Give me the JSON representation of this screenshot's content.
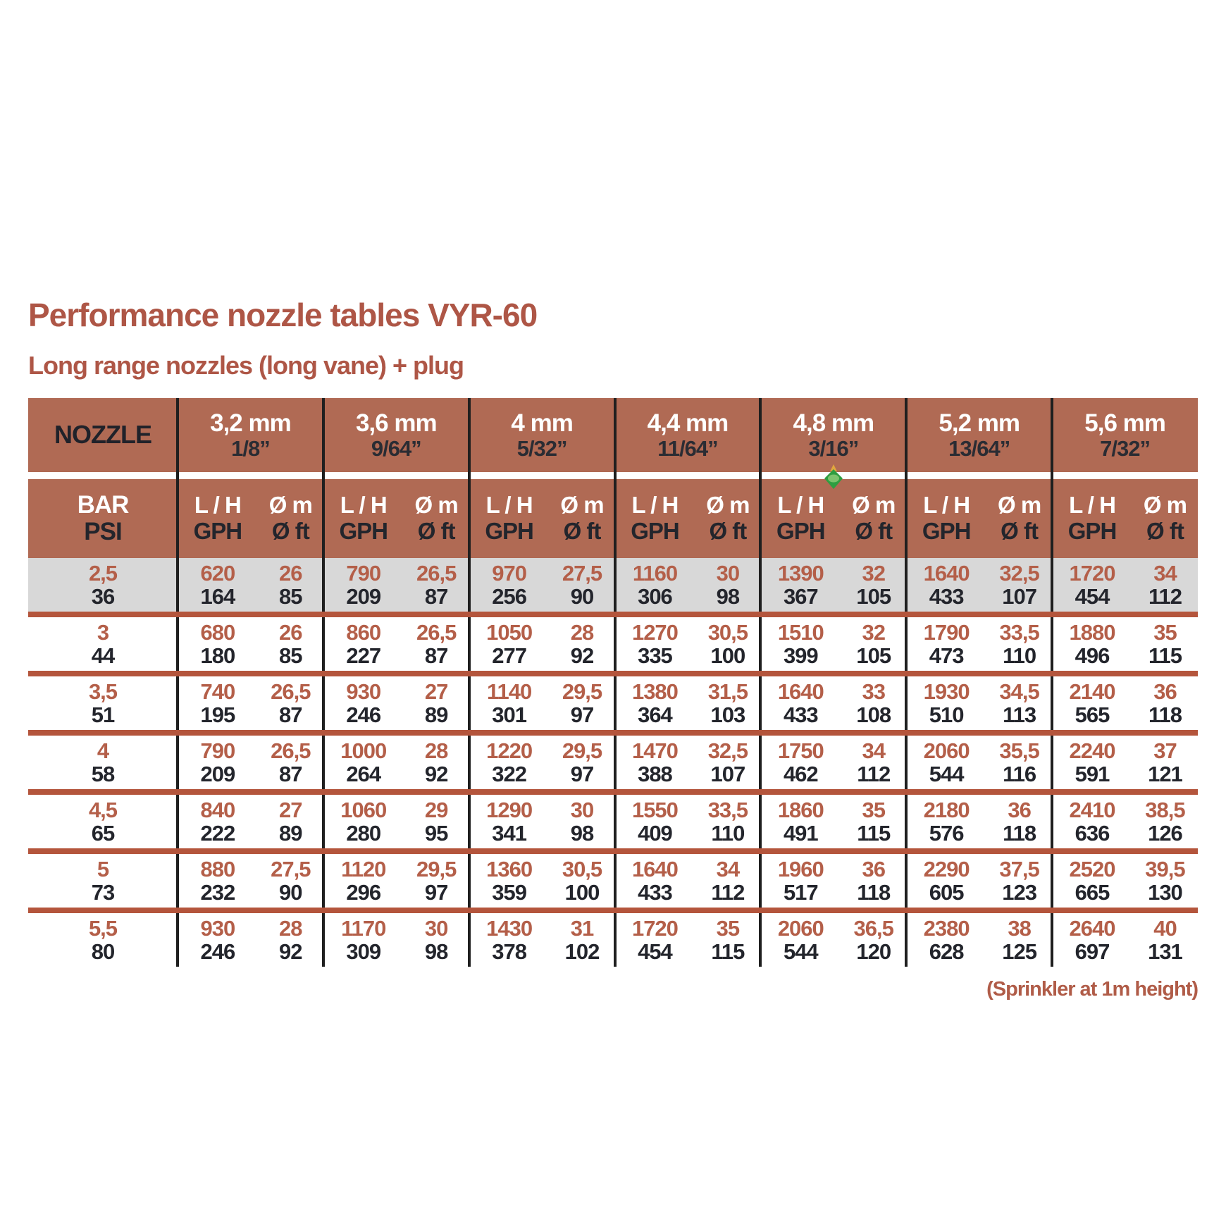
{
  "page": {
    "title": "Performance nozzle tables VYR-60",
    "subtitle": "Long range nozzles (long vane) + plug",
    "footnote": "(Sprinkler at 1m height)"
  },
  "colors": {
    "header_bg": "#b06a54",
    "rule_red": "#b4553c",
    "accent_text": "#b45f49",
    "dark_text": "#23252c",
    "highlight_row_bg": "#d8d8d8",
    "divider_black": "#1f1f1f",
    "marker_green": "#2f9e41",
    "marker_yellow": "#e0a63e"
  },
  "table": {
    "corner_label": "NOZZLE",
    "pressure": {
      "top": "BAR",
      "bottom": "PSI"
    },
    "units": {
      "flow_top": "L / H",
      "flow_bottom": "GPH",
      "dia_top": "Ø m",
      "dia_bottom": "Ø ft"
    },
    "nozzles": [
      {
        "mm": "3,2 mm",
        "inch": "1/8”"
      },
      {
        "mm": "3,6 mm",
        "inch": "9/64”"
      },
      {
        "mm": "4 mm",
        "inch": "5/32”"
      },
      {
        "mm": "4,4 mm",
        "inch": "11/64”"
      },
      {
        "mm": "4,8 mm",
        "inch": "3/16”"
      },
      {
        "mm": "5,2 mm",
        "inch": "13/64”"
      },
      {
        "mm": "5,6 mm",
        "inch": "7/32”"
      }
    ],
    "marker_column_index": 4,
    "rows": [
      {
        "bar": "2,5",
        "psi": "36",
        "highlight": true,
        "cells": [
          {
            "lh": "620",
            "gph": "164",
            "dm": "26",
            "dft": "85"
          },
          {
            "lh": "790",
            "gph": "209",
            "dm": "26,5",
            "dft": "87"
          },
          {
            "lh": "970",
            "gph": "256",
            "dm": "27,5",
            "dft": "90"
          },
          {
            "lh": "1160",
            "gph": "306",
            "dm": "30",
            "dft": "98"
          },
          {
            "lh": "1390",
            "gph": "367",
            "dm": "32",
            "dft": "105"
          },
          {
            "lh": "1640",
            "gph": "433",
            "dm": "32,5",
            "dft": "107"
          },
          {
            "lh": "1720",
            "gph": "454",
            "dm": "34",
            "dft": "112"
          }
        ]
      },
      {
        "bar": "3",
        "psi": "44",
        "highlight": false,
        "cells": [
          {
            "lh": "680",
            "gph": "180",
            "dm": "26",
            "dft": "85"
          },
          {
            "lh": "860",
            "gph": "227",
            "dm": "26,5",
            "dft": "87"
          },
          {
            "lh": "1050",
            "gph": "277",
            "dm": "28",
            "dft": "92"
          },
          {
            "lh": "1270",
            "gph": "335",
            "dm": "30,5",
            "dft": "100"
          },
          {
            "lh": "1510",
            "gph": "399",
            "dm": "32",
            "dft": "105"
          },
          {
            "lh": "1790",
            "gph": "473",
            "dm": "33,5",
            "dft": "110"
          },
          {
            "lh": "1880",
            "gph": "496",
            "dm": "35",
            "dft": "115"
          }
        ]
      },
      {
        "bar": "3,5",
        "psi": "51",
        "highlight": false,
        "cells": [
          {
            "lh": "740",
            "gph": "195",
            "dm": "26,5",
            "dft": "87"
          },
          {
            "lh": "930",
            "gph": "246",
            "dm": "27",
            "dft": "89"
          },
          {
            "lh": "1140",
            "gph": "301",
            "dm": "29,5",
            "dft": "97"
          },
          {
            "lh": "1380",
            "gph": "364",
            "dm": "31,5",
            "dft": "103"
          },
          {
            "lh": "1640",
            "gph": "433",
            "dm": "33",
            "dft": "108"
          },
          {
            "lh": "1930",
            "gph": "510",
            "dm": "34,5",
            "dft": "113"
          },
          {
            "lh": "2140",
            "gph": "565",
            "dm": "36",
            "dft": "118"
          }
        ]
      },
      {
        "bar": "4",
        "psi": "58",
        "highlight": false,
        "cells": [
          {
            "lh": "790",
            "gph": "209",
            "dm": "26,5",
            "dft": "87"
          },
          {
            "lh": "1000",
            "gph": "264",
            "dm": "28",
            "dft": "92"
          },
          {
            "lh": "1220",
            "gph": "322",
            "dm": "29,5",
            "dft": "97"
          },
          {
            "lh": "1470",
            "gph": "388",
            "dm": "32,5",
            "dft": "107"
          },
          {
            "lh": "1750",
            "gph": "462",
            "dm": "34",
            "dft": "112"
          },
          {
            "lh": "2060",
            "gph": "544",
            "dm": "35,5",
            "dft": "116"
          },
          {
            "lh": "2240",
            "gph": "591",
            "dm": "37",
            "dft": "121"
          }
        ]
      },
      {
        "bar": "4,5",
        "psi": "65",
        "highlight": false,
        "cells": [
          {
            "lh": "840",
            "gph": "222",
            "dm": "27",
            "dft": "89"
          },
          {
            "lh": "1060",
            "gph": "280",
            "dm": "29",
            "dft": "95"
          },
          {
            "lh": "1290",
            "gph": "341",
            "dm": "30",
            "dft": "98"
          },
          {
            "lh": "1550",
            "gph": "409",
            "dm": "33,5",
            "dft": "110"
          },
          {
            "lh": "1860",
            "gph": "491",
            "dm": "35",
            "dft": "115"
          },
          {
            "lh": "2180",
            "gph": "576",
            "dm": "36",
            "dft": "118"
          },
          {
            "lh": "2410",
            "gph": "636",
            "dm": "38,5",
            "dft": "126"
          }
        ]
      },
      {
        "bar": "5",
        "psi": "73",
        "highlight": false,
        "cells": [
          {
            "lh": "880",
            "gph": "232",
            "dm": "27,5",
            "dft": "90"
          },
          {
            "lh": "1120",
            "gph": "296",
            "dm": "29,5",
            "dft": "97"
          },
          {
            "lh": "1360",
            "gph": "359",
            "dm": "30,5",
            "dft": "100"
          },
          {
            "lh": "1640",
            "gph": "433",
            "dm": "34",
            "dft": "112"
          },
          {
            "lh": "1960",
            "gph": "517",
            "dm": "36",
            "dft": "118"
          },
          {
            "lh": "2290",
            "gph": "605",
            "dm": "37,5",
            "dft": "123"
          },
          {
            "lh": "2520",
            "gph": "665",
            "dm": "39,5",
            "dft": "130"
          }
        ]
      },
      {
        "bar": "5,5",
        "psi": "80",
        "highlight": false,
        "cells": [
          {
            "lh": "930",
            "gph": "246",
            "dm": "28",
            "dft": "92"
          },
          {
            "lh": "1170",
            "gph": "309",
            "dm": "30",
            "dft": "98"
          },
          {
            "lh": "1430",
            "gph": "378",
            "dm": "31",
            "dft": "102"
          },
          {
            "lh": "1720",
            "gph": "454",
            "dm": "35",
            "dft": "115"
          },
          {
            "lh": "2060",
            "gph": "544",
            "dm": "36,5",
            "dft": "120"
          },
          {
            "lh": "2380",
            "gph": "628",
            "dm": "38",
            "dft": "125"
          },
          {
            "lh": "2640",
            "gph": "697",
            "dm": "40",
            "dft": "131"
          }
        ]
      }
    ]
  }
}
